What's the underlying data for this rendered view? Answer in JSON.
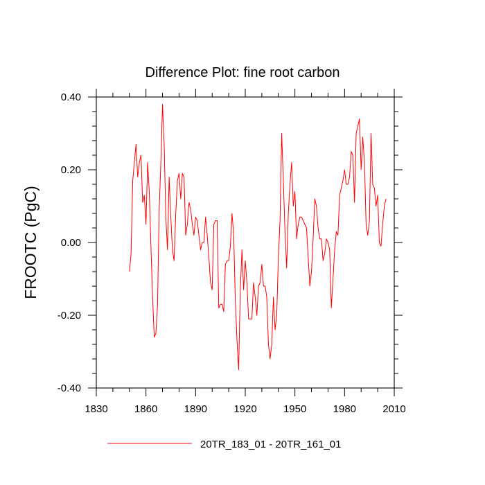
{
  "chart_data": {
    "type": "line",
    "title": "Difference Plot: fine root carbon",
    "ylabel": "FROOTC  (PgC)",
    "xlabel": "",
    "xlim": [
      1830,
      2010
    ],
    "ylim": [
      -0.4,
      0.4
    ],
    "x_ticks": [
      1830,
      1860,
      1890,
      1920,
      1950,
      1980,
      2010
    ],
    "x_tick_labels": [
      "1830",
      "1860",
      "1890",
      "1920",
      "1950",
      "1980",
      "2010"
    ],
    "y_ticks": [
      -0.4,
      -0.2,
      0.0,
      0.2,
      0.4
    ],
    "y_tick_labels": [
      "-0.40",
      "-0.20",
      "0.00",
      "0.20",
      "0.40"
    ],
    "grid": false,
    "legend_position": "bottom-center",
    "series": [
      {
        "name": "20TR_183_01 - 20TR_161_01",
        "color": "#ff0000",
        "x": [
          1850,
          1851,
          1852,
          1853,
          1854,
          1855,
          1856,
          1857,
          1858,
          1859,
          1860,
          1861,
          1862,
          1863,
          1864,
          1865,
          1866,
          1867,
          1868,
          1869,
          1870,
          1871,
          1872,
          1873,
          1874,
          1875,
          1876,
          1877,
          1878,
          1879,
          1880,
          1881,
          1882,
          1883,
          1884,
          1885,
          1886,
          1887,
          1888,
          1889,
          1890,
          1891,
          1892,
          1893,
          1894,
          1895,
          1896,
          1897,
          1898,
          1899,
          1900,
          1901,
          1902,
          1903,
          1904,
          1905,
          1906,
          1907,
          1908,
          1909,
          1910,
          1911,
          1912,
          1913,
          1914,
          1915,
          1916,
          1917,
          1918,
          1919,
          1920,
          1921,
          1922,
          1923,
          1924,
          1925,
          1926,
          1927,
          1928,
          1929,
          1930,
          1931,
          1932,
          1933,
          1934,
          1935,
          1936,
          1937,
          1938,
          1939,
          1940,
          1941,
          1942,
          1943,
          1944,
          1945,
          1946,
          1947,
          1948,
          1949,
          1950,
          1951,
          1952,
          1953,
          1954,
          1955,
          1956,
          1957,
          1958,
          1959,
          1960,
          1961,
          1962,
          1963,
          1964,
          1965,
          1966,
          1967,
          1968,
          1969,
          1970,
          1971,
          1972,
          1973,
          1974,
          1975,
          1976,
          1977,
          1978,
          1979,
          1980,
          1981,
          1982,
          1983,
          1984,
          1985,
          1986,
          1987,
          1988,
          1989,
          1990,
          1991,
          1992,
          1993,
          1994,
          1995,
          1996,
          1997,
          1998,
          1999,
          2000,
          2001,
          2002,
          2003,
          2004,
          2005
        ],
        "y": [
          -0.08,
          -0.03,
          0.17,
          0.22,
          0.27,
          0.18,
          0.22,
          0.24,
          0.11,
          0.13,
          0.05,
          0.22,
          0.14,
          -0.01,
          -0.15,
          -0.26,
          -0.25,
          -0.17,
          0.09,
          0.22,
          0.38,
          0.27,
          0.07,
          -0.02,
          0.18,
          0.07,
          -0.02,
          -0.05,
          0.08,
          0.17,
          0.19,
          0.12,
          0.19,
          0.18,
          0.02,
          0.05,
          0.11,
          0.09,
          0.05,
          0.02,
          0.07,
          0.06,
          0.02,
          -0.02,
          0.0,
          0.0,
          0.07,
          0.02,
          -0.04,
          -0.11,
          -0.13,
          0.05,
          0.06,
          0.06,
          -0.18,
          -0.17,
          -0.17,
          -0.19,
          -0.06,
          -0.05,
          -0.05,
          -0.01,
          0.08,
          0.02,
          -0.16,
          -0.27,
          -0.35,
          -0.13,
          -0.02,
          -0.13,
          -0.05,
          -0.11,
          -0.21,
          -0.21,
          -0.21,
          -0.11,
          -0.15,
          -0.2,
          -0.12,
          -0.11,
          -0.06,
          -0.12,
          -0.12,
          -0.15,
          -0.28,
          -0.32,
          -0.28,
          -0.15,
          -0.24,
          -0.2,
          -0.04,
          0.06,
          0.3,
          0.17,
          0.03,
          -0.07,
          0.08,
          0.16,
          0.22,
          0.1,
          0.14,
          0.01,
          0.05,
          0.07,
          0.07,
          0.06,
          0.05,
          0.04,
          -0.04,
          -0.12,
          -0.08,
          0.01,
          0.12,
          0.1,
          0.04,
          0.01,
          0.01,
          -0.05,
          -0.03,
          0.01,
          0.0,
          -0.02,
          -0.18,
          -0.1,
          -0.02,
          0.03,
          0.02,
          0.13,
          0.15,
          0.17,
          0.2,
          0.16,
          0.16,
          0.18,
          0.25,
          0.24,
          0.11,
          0.3,
          0.32,
          0.34,
          0.2,
          0.29,
          0.22,
          0.05,
          0.02,
          0.06,
          0.3,
          0.16,
          0.15,
          0.1,
          0.13,
          0.0,
          -0.01,
          0.05,
          0.1,
          0.12
        ]
      }
    ]
  }
}
